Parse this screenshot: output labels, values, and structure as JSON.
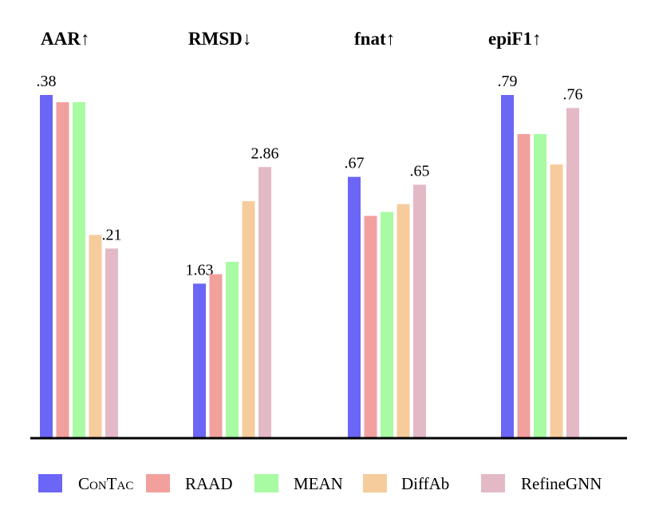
{
  "chart_data": {
    "type": "bar",
    "grouped": true,
    "legend_position": "bottom",
    "grid": false,
    "series": [
      {
        "name": "ConTac",
        "color": "#6b66f5"
      },
      {
        "name": "RAAD",
        "color": "#f2a09e"
      },
      {
        "name": "MEAN",
        "color": "#a8fba2"
      },
      {
        "name": "DiffAb",
        "color": "#f6cc9c"
      },
      {
        "name": "RefineGNN",
        "color": "#e4b9c6"
      }
    ],
    "groups": [
      {
        "title": "AAR↑",
        "values": [
          0.38,
          0.372,
          0.372,
          0.225,
          0.21
        ],
        "labels": [
          ".38",
          "",
          "",
          "",
          ".21"
        ],
        "ylim": [
          0,
          0.38
        ]
      },
      {
        "title": "RMSD↓",
        "values": [
          1.63,
          1.73,
          1.86,
          2.5,
          2.86
        ],
        "labels": [
          "1.63",
          "",
          "",
          "",
          "2.86"
        ],
        "ylim": [
          0,
          3.62
        ]
      },
      {
        "title": "fnat↑",
        "values": [
          0.67,
          0.57,
          0.58,
          0.6,
          0.65
        ],
        "labels": [
          ".67",
          "",
          "",
          "",
          ".65"
        ],
        "ylim": [
          0,
          0.88
        ]
      },
      {
        "title": "epiF1↑",
        "values": [
          0.79,
          0.7,
          0.7,
          0.63,
          0.76
        ],
        "labels": [
          ".79",
          "",
          "",
          "",
          ".76"
        ],
        "ylim": [
          0,
          0.79
        ]
      }
    ]
  }
}
